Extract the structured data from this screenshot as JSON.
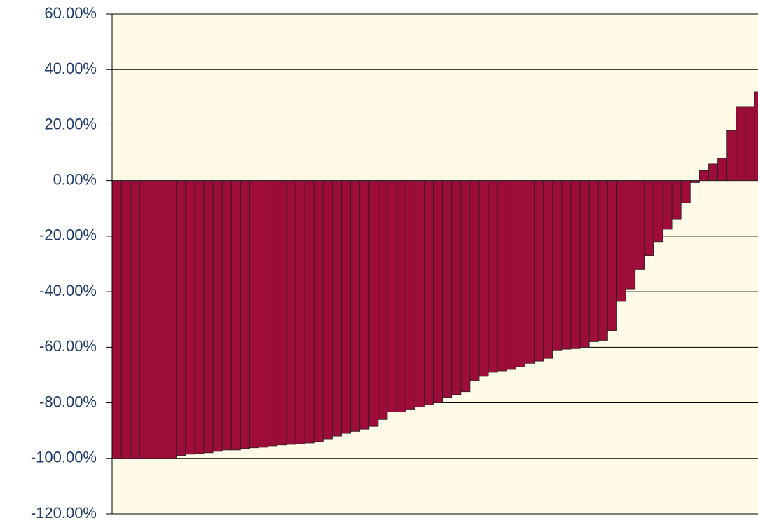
{
  "chart_data": {
    "type": "bar",
    "categories": [
      null,
      null,
      null,
      null,
      null,
      null,
      null,
      null,
      null,
      null,
      null,
      null,
      null,
      null,
      null,
      null,
      null,
      null,
      null,
      null,
      null,
      null,
      null,
      null,
      null,
      null,
      null,
      null,
      null,
      null,
      null,
      null,
      null,
      null,
      null,
      null,
      null,
      null,
      null,
      null,
      null,
      null,
      null,
      null,
      null,
      null,
      null,
      null,
      null,
      null,
      null,
      null,
      null,
      null,
      null,
      null,
      null,
      null,
      null,
      null,
      null,
      null,
      null,
      null,
      null,
      null,
      null,
      null,
      null,
      null,
      null
    ],
    "values": [
      -100,
      -100,
      -100,
      -100,
      -100,
      -100,
      -100,
      -99,
      -98.5,
      -98.3,
      -98,
      -97.5,
      -97,
      -97,
      -96.5,
      -96.2,
      -96,
      -95.5,
      -95.2,
      -95,
      -94.8,
      -94.5,
      -94,
      -93,
      -92,
      -91,
      -90.3,
      -89.5,
      -88.5,
      -86,
      -83.3,
      -83.3,
      -82.5,
      -81.5,
      -80.7,
      -80,
      -78,
      -77,
      -76,
      -72,
      -70.5,
      -69,
      -68.5,
      -68,
      -67,
      -65.8,
      -65,
      -64,
      -61,
      -60.7,
      -60.5,
      -60,
      -58,
      -57.5,
      -54,
      -43.5,
      -39,
      -32,
      -27,
      -22,
      -17.5,
      -14,
      -8,
      -0.7,
      3.6,
      6,
      8,
      18,
      26.7,
      26.7,
      32
    ],
    "color": "#9e0c3a",
    "ylim": [
      -120,
      60
    ],
    "yticks": [
      {
        "value": -120,
        "label": "-120.00%"
      },
      {
        "value": -100,
        "label": "-100.00%"
      },
      {
        "value": -80,
        "label": "-80.00%"
      },
      {
        "value": -60,
        "label": "-60.00%"
      },
      {
        "value": -40,
        "label": "-40.00%"
      },
      {
        "value": -20,
        "label": "-20.00%"
      },
      {
        "value": 0,
        "label": "0.00%"
      },
      {
        "value": 20,
        "label": "20.00%"
      },
      {
        "value": 40,
        "label": "40.00%"
      },
      {
        "value": 60,
        "label": "60.00%"
      }
    ],
    "grid": true
  }
}
